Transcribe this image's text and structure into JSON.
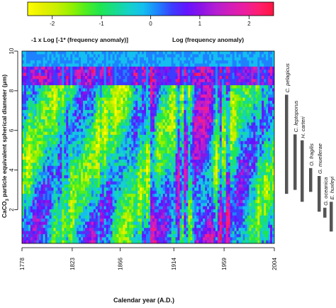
{
  "chart_data": {
    "type": "heatmap",
    "xlabel": "Calendar year (A.D.)",
    "ylabel_parts": [
      "CaCO",
      "3",
      " particle equivalent spherical diameter (μm)"
    ],
    "x_ticks": [
      "1778",
      "1823",
      "1866",
      "1914",
      "1959",
      "2004"
    ],
    "x_range": [
      1778,
      2004
    ],
    "y_ticks": [
      "2",
      "4",
      "6",
      "8",
      "10"
    ],
    "y_range": [
      0.3,
      10
    ],
    "colorbar": {
      "ticks": [
        "-2",
        "-1",
        "0",
        "1",
        "2"
      ],
      "range": [
        -2.5,
        2.5
      ],
      "left_label": "-1 x Log [-1* (frequency anomaly)]",
      "right_label": "Log (frequency anomaly)",
      "colors": [
        "#ffff00",
        "#e6f000",
        "#c8f000",
        "#96f000",
        "#50ee20",
        "#20e650",
        "#18dc8c",
        "#14d2c8",
        "#14bef0",
        "#1e82ff",
        "#3c3cff",
        "#6414ff",
        "#8c14e6",
        "#b41ed2",
        "#d21eb9",
        "#eb1ea0",
        "#ff1e6e",
        "#ff1440"
      ]
    },
    "grid": false,
    "species": [
      {
        "name": "C. pelagicus",
        "min_um": 2.8,
        "max_um": 7.8
      },
      {
        "name": "C. leptoporus",
        "min_um": 3.0,
        "max_um": 5.8
      },
      {
        "name": "H. carteri",
        "min_um": 2.4,
        "max_um": 5.5
      },
      {
        "name": "O. fragilis",
        "min_um": 2.9,
        "max_um": 4.1
      },
      {
        "name": "G. muellerae",
        "min_um": 1.9,
        "max_um": 3.7
      },
      {
        "name": "G. oceanica",
        "min_um": 1.6,
        "max_um": 2.1
      },
      {
        "name": "E. huxleyi",
        "min_um": 0.9,
        "max_um": 2.4
      }
    ]
  }
}
